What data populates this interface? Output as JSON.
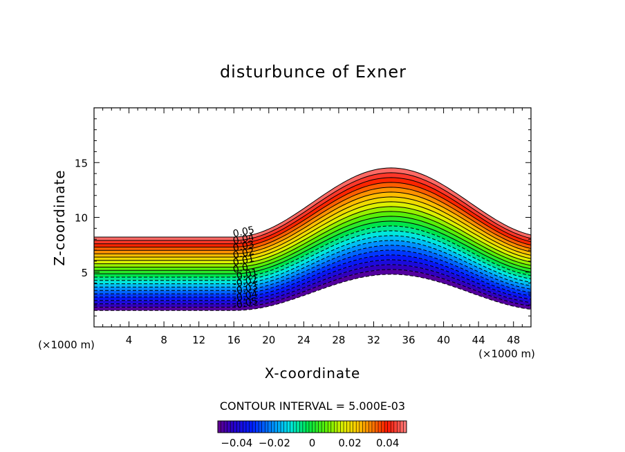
{
  "chart_data": {
    "type": "contour",
    "title": "disturbunce of Exner",
    "xlabel": "X-coordinate",
    "ylabel": "Z-coordinate",
    "x_unit": "(×1000 m)",
    "y_unit": "(×1000 m)",
    "xlim": [
      0,
      50
    ],
    "ylim": [
      0,
      20
    ],
    "x_ticks": [
      4,
      8,
      12,
      16,
      20,
      24,
      28,
      32,
      36,
      40,
      44,
      48
    ],
    "y_ticks": [
      5,
      10,
      15
    ],
    "contour_interval_text": "CONTOUR INTERVAL = 5.000E-03",
    "levels": {
      "min": -0.055,
      "max": 0.055,
      "step": 0.005
    },
    "contour_labels": [
      "0.05",
      "0.04",
      "0.03",
      "0.02",
      "0.01",
      "0.0",
      "-0.01",
      "-0.02",
      "-0.03",
      "-0.04",
      "-0.05"
    ],
    "terrain": {
      "description": "layered bands following a smooth bump between x=16 and x=50",
      "base_bottom_z": 1.5,
      "base_top_z": 8.2,
      "bump_start_x": 16,
      "bump_peak_x": 34,
      "bump_height_z": 3.3
    },
    "colorbar": {
      "range": [
        -0.05,
        0.05
      ],
      "tick_labels": [
        "-0.04",
        "-0.02",
        "0",
        "0.02",
        "0.04"
      ],
      "tick_values": [
        -0.04,
        -0.02,
        0,
        0.02,
        0.04
      ]
    }
  }
}
